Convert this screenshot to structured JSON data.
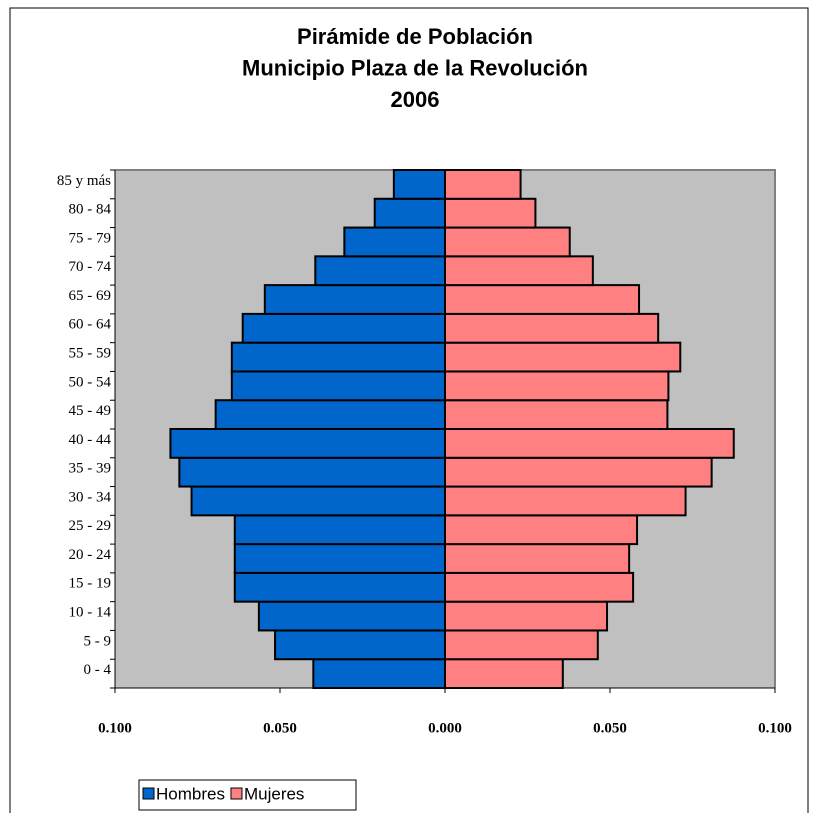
{
  "chart_data": {
    "type": "pyramid",
    "title": [
      "Pirámide de Población",
      "Municipio Plaza de la Revolución",
      "2006"
    ],
    "categories": [
      "0 - 4",
      "5 - 9",
      "10 - 14",
      "15 - 19",
      "20 - 24",
      "25 - 29",
      "30 - 34",
      "35 - 39",
      "40 - 44",
      "45 - 49",
      "50 - 54",
      "55 - 59",
      "60 - 64",
      "65 - 69",
      "70 - 74",
      "75 - 79",
      "80 - 84",
      "85 y más"
    ],
    "series": [
      {
        "name": "Hombres",
        "color": "#0066cc",
        "values": [
          -0.0399,
          -0.0515,
          -0.0564,
          -0.0637,
          -0.0637,
          -0.0637,
          -0.0768,
          -0.0805,
          -0.0832,
          -0.0695,
          -0.0646,
          -0.0646,
          -0.0613,
          -0.0546,
          -0.0393,
          -0.0305,
          -0.0213,
          -0.0155
        ]
      },
      {
        "name": "Mujeres",
        "color": "#ff8080",
        "values": [
          0.0357,
          0.0463,
          0.0491,
          0.057,
          0.0558,
          0.0582,
          0.0729,
          0.0808,
          0.0875,
          0.0674,
          0.0677,
          0.0713,
          0.0646,
          0.0588,
          0.0448,
          0.0378,
          0.0274,
          0.0229
        ]
      }
    ],
    "xlim": [
      -0.1,
      0.1
    ],
    "xticks": [
      {
        "value": -0.1,
        "label": "0.100"
      },
      {
        "value": -0.05,
        "label": "0.050"
      },
      {
        "value": 0,
        "label": "0.000"
      },
      {
        "value": 0.05,
        "label": "0.050"
      },
      {
        "value": 0.1,
        "label": "0.100"
      }
    ],
    "legend": "bottom-left"
  }
}
